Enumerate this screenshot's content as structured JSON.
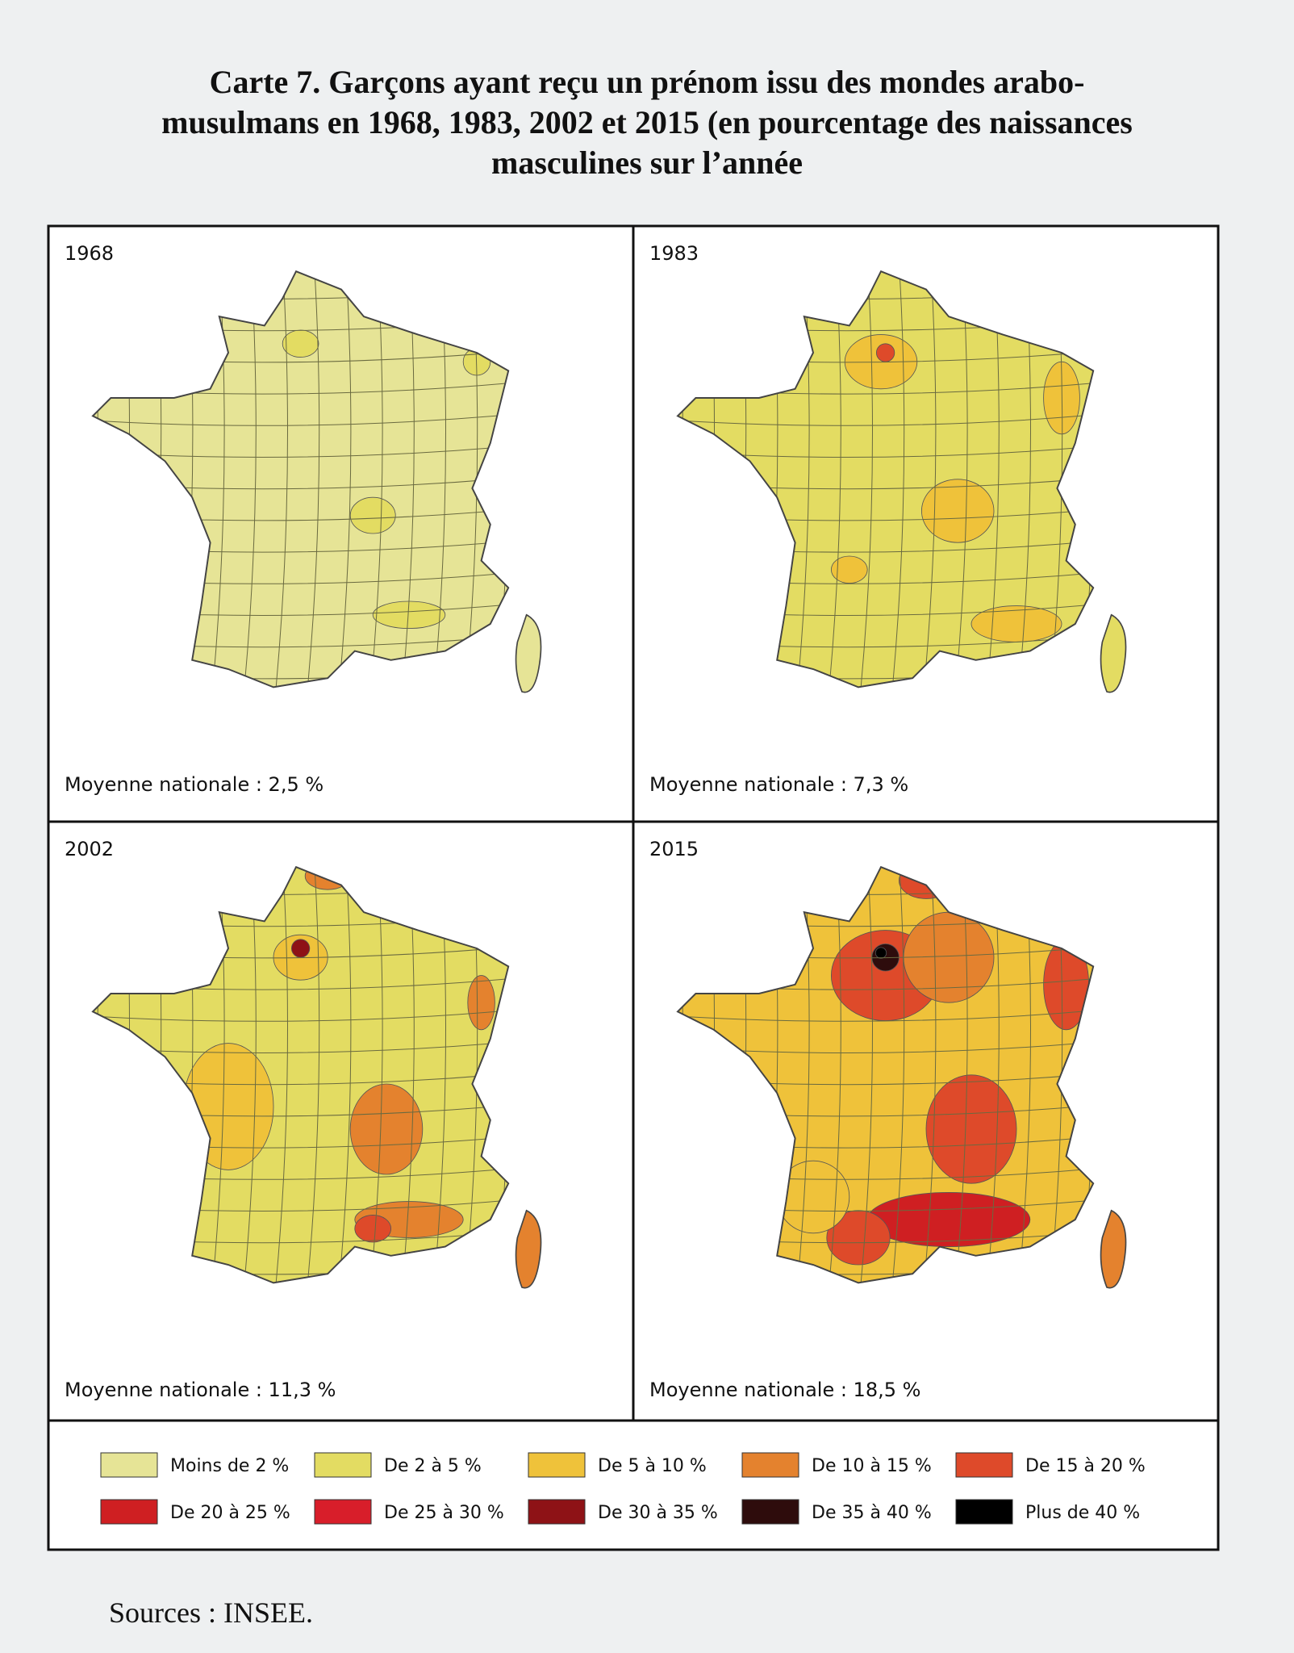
{
  "title": {
    "lines": [
      "Carte 7. Garçons ayant reçu un prénom issu des mondes arabo-",
      "musulmans en 1968, 1983, 2002 et 2015 (en pourcentage des naissances",
      "masculines sur l’année"
    ]
  },
  "panels": [
    {
      "year": "1968",
      "average": "Moyenne nationale : 2,5 %"
    },
    {
      "year": "1983",
      "average": "Moyenne nationale : 7,3 %"
    },
    {
      "year": "2002",
      "average": "Moyenne nationale : 11,3 %"
    },
    {
      "year": "2015",
      "average": "Moyenne nationale : 18,5 %"
    }
  ],
  "legend": [
    {
      "label": "Moins de 2 %",
      "color": "#e6e496"
    },
    {
      "label": "De 2 à 5 %",
      "color": "#e3dc62"
    },
    {
      "label": "De 5 à 10 %",
      "color": "#efc23a"
    },
    {
      "label": "De 10 à 15 %",
      "color": "#e4822e"
    },
    {
      "label": "De 15 à 20 %",
      "color": "#de4a2a"
    },
    {
      "label": "De 20 à 25 %",
      "color": "#cf1f22"
    },
    {
      "label": "De 25 à 30 %",
      "color": "#d81e2a"
    },
    {
      "label": "De 30 à 35 %",
      "color": "#8e1216"
    },
    {
      "label": "De 35 à 40 %",
      "color": "#2e0c0c"
    },
    {
      "label": "Plus de 40 %",
      "color": "#000000"
    }
  ],
  "source": "Sources : INSEE."
}
